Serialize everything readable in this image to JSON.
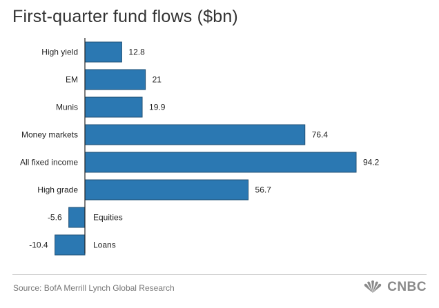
{
  "title": "First-quarter fund flows ($bn)",
  "source": "Source: BofA Merrill Lynch Global Research",
  "logo": {
    "text": "CNBC",
    "icon": "peacock-icon"
  },
  "colors": {
    "bar": "#2b78b2",
    "bar_edge": "#1f4f74",
    "axis": "#222222"
  },
  "chart_data": {
    "type": "bar",
    "orientation": "horizontal",
    "categories": [
      "High yield",
      "EM",
      "Munis",
      "Money markets",
      "All fixed income",
      "High grade",
      "Equities",
      "Loans"
    ],
    "values": [
      12.8,
      21,
      19.9,
      76.4,
      94.2,
      56.7,
      -5.6,
      -10.4
    ],
    "value_labels": [
      "12.8",
      "21",
      "19.9",
      "76.4",
      "94.2",
      "56.7",
      "-5.6",
      "-10.4"
    ],
    "title": "First-quarter fund flows ($bn)",
    "xlabel": "",
    "ylabel": "",
    "xlim": [
      -15,
      100
    ],
    "grid": false,
    "legend": "none"
  }
}
